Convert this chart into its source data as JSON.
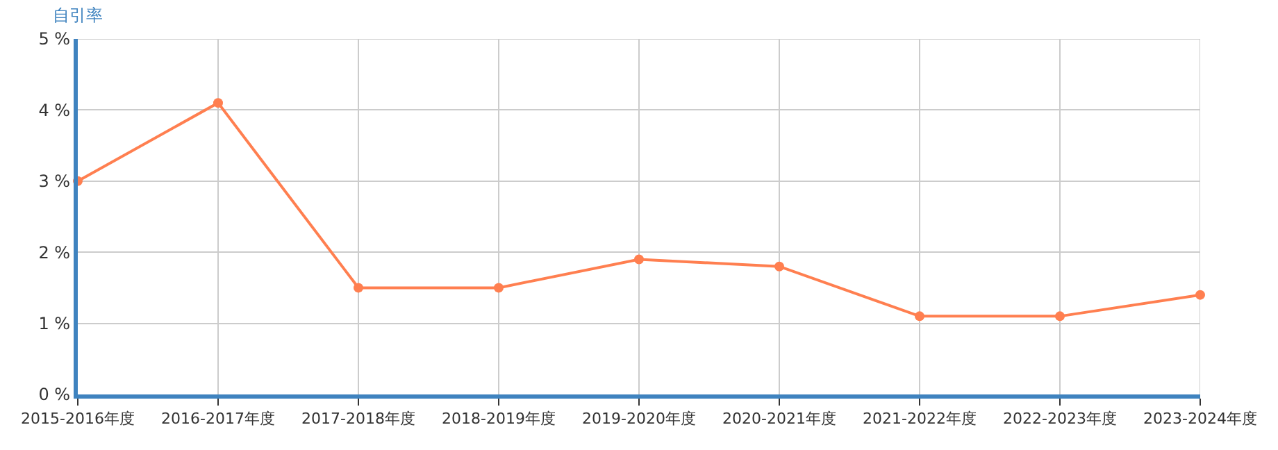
{
  "chart_data": {
    "type": "line",
    "ylabel": "自引率",
    "categories": [
      "2015-2016年度",
      "2016-2017年度",
      "2017-2018年度",
      "2018-2019年度",
      "2019-2020年度",
      "2020-2021年度",
      "2021-2022年度",
      "2022-2023年度",
      "2023-2024年度"
    ],
    "series": [
      {
        "color": "#ff7f50",
        "values": [
          3.0,
          4.1,
          1.5,
          1.5,
          1.9,
          1.8,
          1.1,
          1.1,
          1.4
        ]
      }
    ],
    "ylim": [
      0,
      5
    ],
    "yticks": [
      {
        "value": 0,
        "label": "0 %"
      },
      {
        "value": 1,
        "label": "1 %"
      },
      {
        "value": 2,
        "label": "2 %"
      },
      {
        "value": 3,
        "label": "3 %"
      },
      {
        "value": 4,
        "label": "4 %"
      },
      {
        "value": 5,
        "label": "5 %"
      }
    ],
    "grid": true,
    "marker": "circle",
    "line_style": "solid"
  }
}
